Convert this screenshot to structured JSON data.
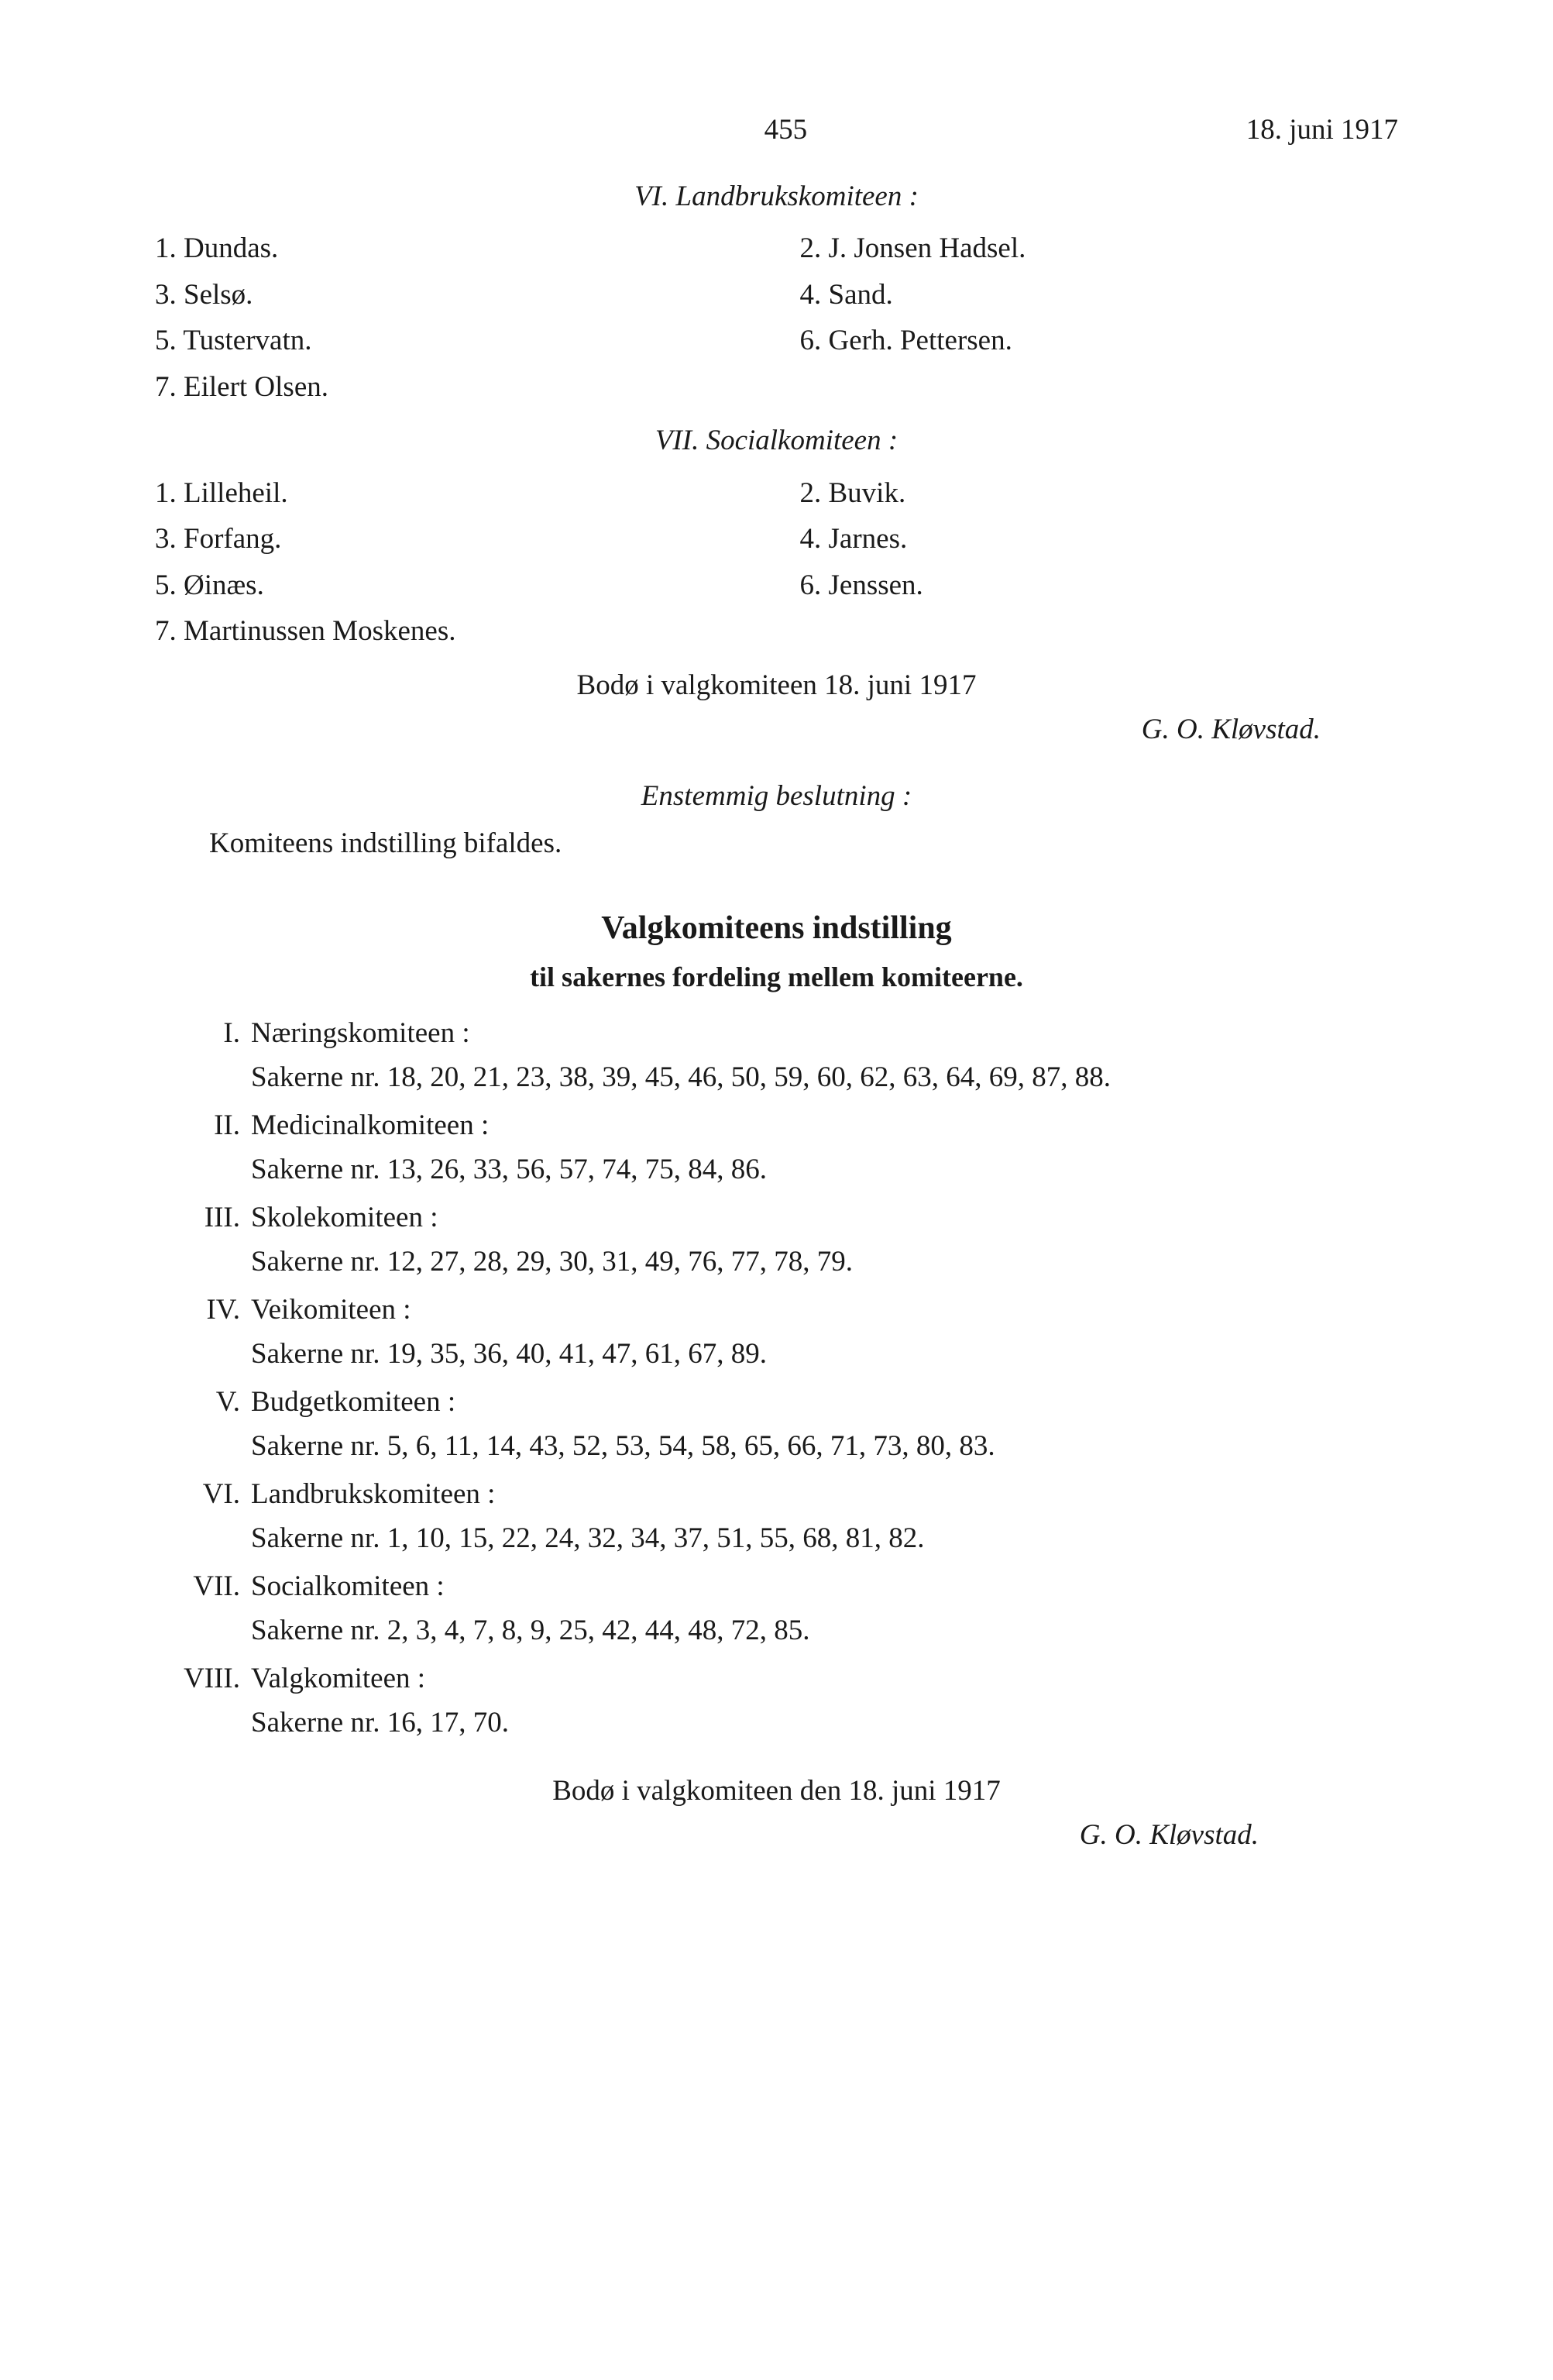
{
  "header": {
    "page_number": "455",
    "date": "18. juni 1917"
  },
  "section_vi": {
    "title": "VI.   Landbrukskomiteen :",
    "left": [
      "1. Dundas.",
      "3. Selsø.",
      "5. Tustervatn.",
      "7. Eilert Olsen."
    ],
    "right": [
      "2. J. Jonsen Hadsel.",
      "4. Sand.",
      "6. Gerh. Pettersen."
    ]
  },
  "section_vii": {
    "title": "VII.   Socialkomiteen :",
    "left": [
      "1. Lilleheil.",
      "3. Forfang.",
      "5. Øinæs.",
      "7. Martinussen Moskenes."
    ],
    "right": [
      "2. Buvik.",
      "4. Jarnes.",
      "6. Jenssen."
    ]
  },
  "meeting_line": "Bodø i valgkomiteen 18. juni 1917",
  "signature1": "G. O. Kløvstad.",
  "enstemmig": "Enstemmig beslutning :",
  "komiteens": "Komiteens indstilling bifaldes.",
  "main_title": "Valgkomiteens indstilling",
  "sub_title": "til sakernes fordeling mellem komiteerne.",
  "committees": [
    {
      "num": "I.",
      "name": "Næringskomiteen :",
      "sak": "Sakerne nr. 18, 20, 21, 23, 38, 39, 45, 46, 50, 59, 60, 62, 63, 64, 69, 87, 88."
    },
    {
      "num": "II.",
      "name": "Medicinalkomiteen :",
      "sak": "Sakerne   nr. 13, 26, 33, 56, 57, 74, 75, 84, 86."
    },
    {
      "num": "III.",
      "name": "Skolekomiteen :",
      "sak": "Sakerne nr. 12, 27, 28, 29, 30, 31, 49, 76, 77, 78, 79."
    },
    {
      "num": "IV.",
      "name": "Veikomiteen :",
      "sak": "Sakerne nr. 19, 35, 36, 40, 41, 47, 61, 67, 89."
    },
    {
      "num": "V.",
      "name": "Budgetkomiteen :",
      "sak": "Sakerne nr. 5, 6, 11, 14, 43, 52, 53, 54, 58, 65, 66, 71, 73, 80, 83."
    },
    {
      "num": "VI.",
      "name": "Landbrukskomiteen :",
      "sak": "Sakerne nr. 1, 10, 15, 22, 24, 32, 34, 37, 51, 55, 68, 81, 82."
    },
    {
      "num": "VII.",
      "name": "Socialkomiteen :",
      "sak": "Sakerne nr. 2, 3, 4, 7, 8, 9, 25, 42, 44, 48, 72, 85."
    },
    {
      "num": "VIII.",
      "name": "Valgkomiteen :",
      "sak": "Sakerne nr. 16, 17, 70."
    }
  ],
  "bottom_line": "Bodø i valgkomiteen den 18. juni 1917",
  "signature2": "G. O. Kløvstad."
}
